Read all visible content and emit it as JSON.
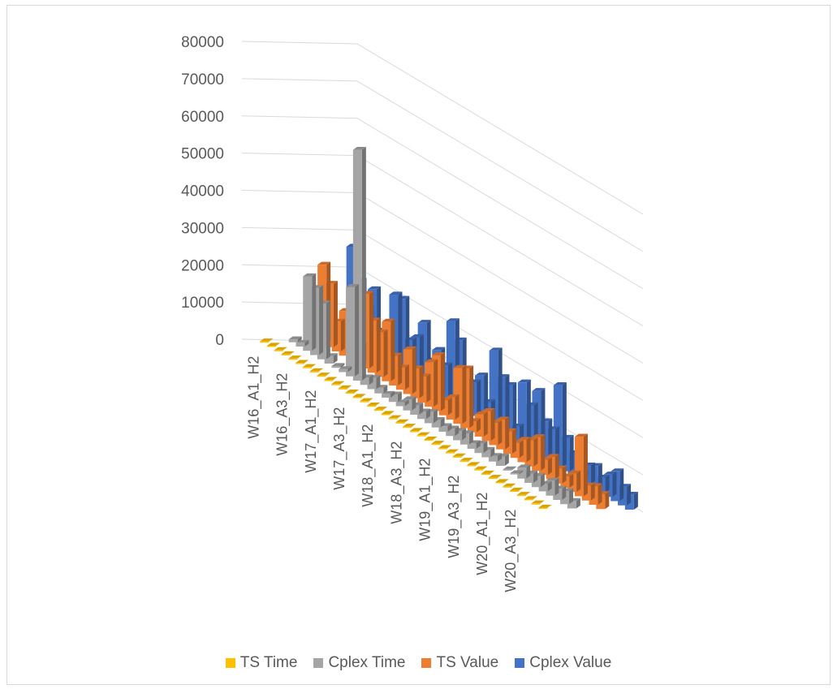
{
  "chart_data": {
    "type": "bar",
    "subtype": "3d-column",
    "title": "",
    "xlabel": "",
    "ylabel": "",
    "ylim": [
      0,
      80000
    ],
    "yticks": [
      "0",
      "10000",
      "20000",
      "30000",
      "40000",
      "50000",
      "60000",
      "70000",
      "80000"
    ],
    "gridlines": true,
    "legend_position": "bottom",
    "category_labels_shown": [
      "W16_A1_H2",
      "W16_A3_H2",
      "W17_A1_H2",
      "W17_A3_H2",
      "W18_A1_H2",
      "W18_A3_H2",
      "W19_A1_H2",
      "W19_A3_H2",
      "W20_A1_H2",
      "W20_A3_H2"
    ],
    "categories_per_label": 4,
    "series": [
      {
        "name": "TS Time",
        "color": "#ffc000",
        "values": [
          50,
          60,
          40,
          70,
          50,
          40,
          60,
          80,
          50,
          40,
          60,
          70,
          80,
          50,
          60,
          40,
          60,
          50,
          70,
          80,
          60,
          50,
          70,
          60,
          50,
          40,
          60,
          80,
          70,
          50,
          60,
          50,
          70,
          60,
          40,
          50,
          60,
          70,
          50,
          60
        ]
      },
      {
        "name": "Cplex Time",
        "color": "#a5a5a5",
        "values": [
          800,
          1000,
          20000,
          18000,
          15000,
          2000,
          500,
          800,
          24000,
          62000,
          2000,
          3000,
          1500,
          1000,
          2000,
          1000,
          3000,
          2500,
          2000,
          3000,
          2000,
          1500,
          2000,
          2500,
          3000,
          1500,
          2500,
          2000,
          1500,
          2500,
          200,
          300,
          3000,
          2500,
          3000,
          2000,
          4000,
          3000,
          3500,
          2000
        ]
      },
      {
        "name": "TS Value",
        "color": "#ed7d31",
        "values": [
          21000,
          17000,
          8000,
          12000,
          9000,
          5000,
          20000,
          14000,
          12000,
          16000,
          8000,
          6000,
          12000,
          8000,
          7000,
          12000,
          15000,
          4000,
          6000,
          15000,
          16000,
          3000,
          6000,
          8000,
          6000,
          8000,
          6000,
          4000,
          6000,
          7000,
          9000,
          4000,
          6000,
          4000,
          3000,
          5000,
          16000,
          4000,
          5000,
          4000
        ]
      },
      {
        "name": "Cplex Value",
        "color": "#4472c4",
        "values": [
          26000,
          18000,
          12000,
          18000,
          8000,
          2000,
          20000,
          20000,
          10000,
          12000,
          17000,
          8000,
          12000,
          9000,
          22000,
          18000,
          8000,
          9000,
          12000,
          6000,
          21000,
          15000,
          14000,
          4000,
          17000,
          12000,
          17000,
          10000,
          9000,
          22000,
          9000,
          6000,
          2000,
          5000,
          6000,
          4000,
          6000,
          8000,
          5000,
          4000
        ]
      }
    ]
  }
}
